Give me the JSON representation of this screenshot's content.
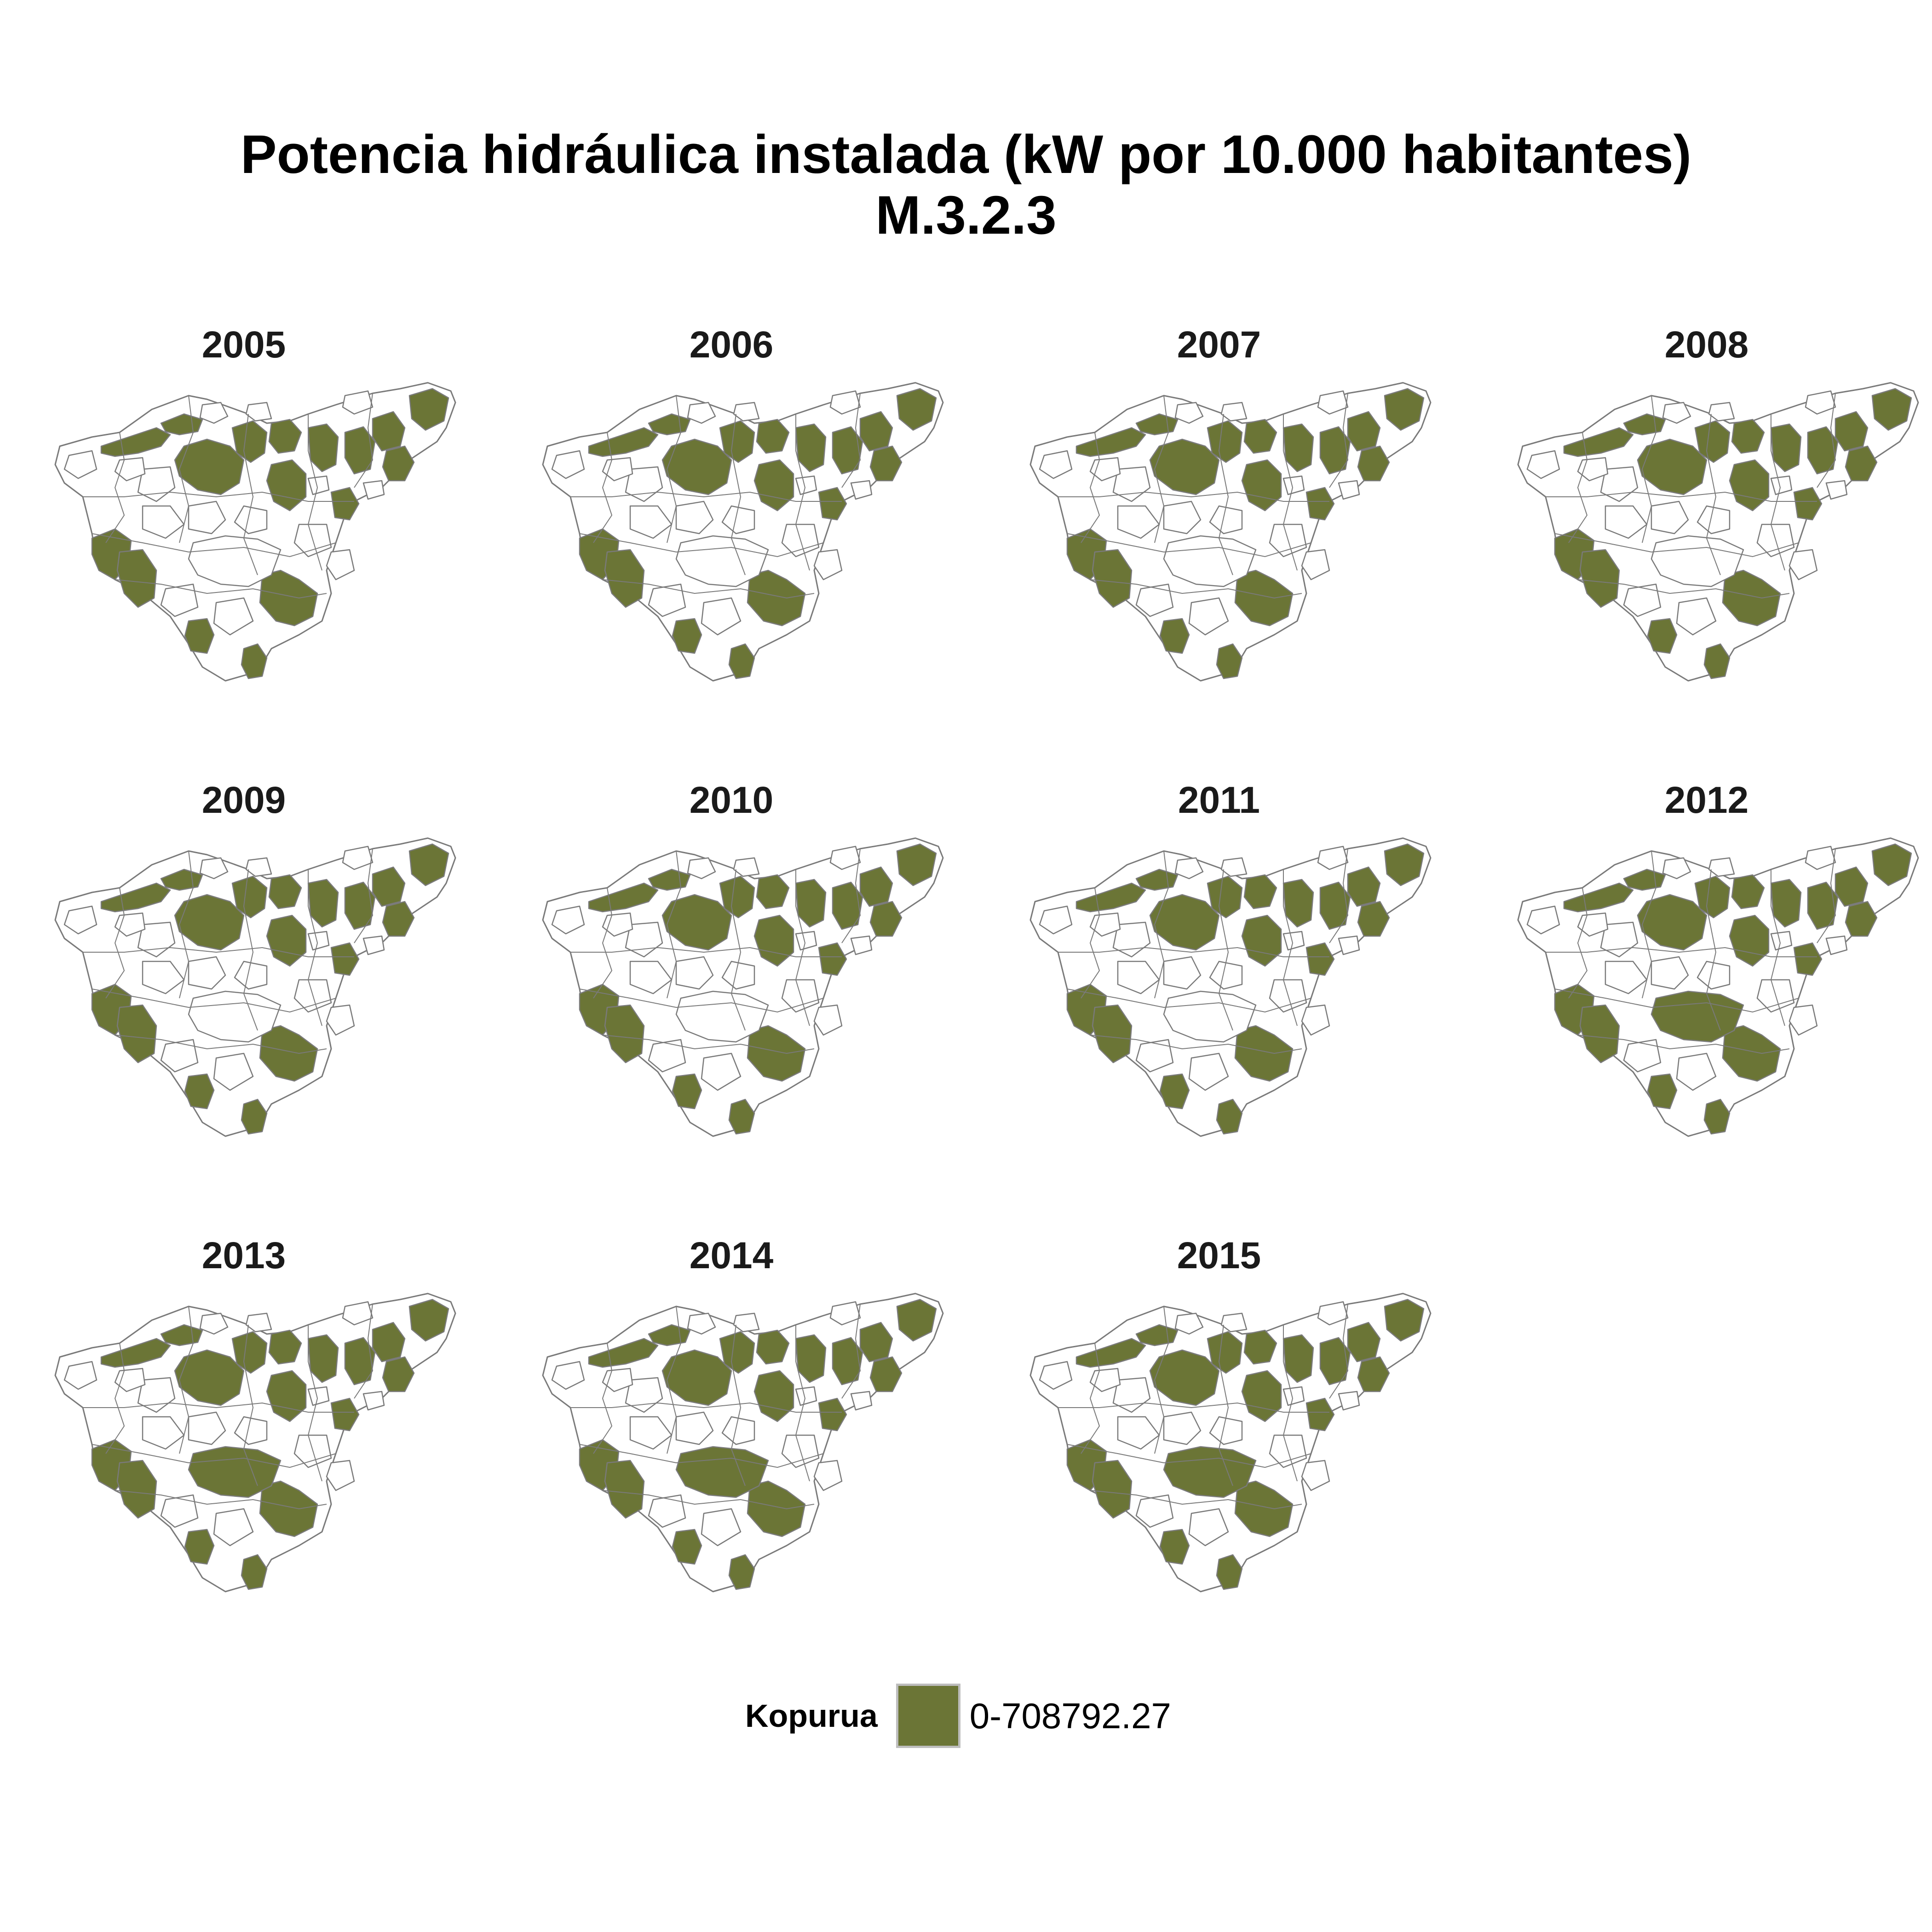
{
  "title": {
    "line1": "Potencia hidráulica instalada (kW por 10.000 habitantes)",
    "line2": "M.3.2.3"
  },
  "colors": {
    "fill": "#6b7536",
    "border": "#7a7a7a",
    "empty": "#ffffff",
    "legend_border": "#bdbdbd"
  },
  "panels": [
    {
      "year": "2005",
      "highlight": [
        "w1",
        "w2",
        "c1",
        "c2",
        "c3",
        "c4",
        "c5",
        "e1",
        "e2",
        "e3",
        "e4",
        "e5",
        "sw1",
        "sw2",
        "s1",
        "s2",
        "s3"
      ]
    },
    {
      "year": "2006",
      "highlight": [
        "w1",
        "w2",
        "c1",
        "c2",
        "c3",
        "c4",
        "c5",
        "e1",
        "e2",
        "e3",
        "e4",
        "e5",
        "sw1",
        "sw2",
        "s1",
        "s2",
        "s3"
      ]
    },
    {
      "year": "2007",
      "highlight": [
        "w1",
        "w2",
        "c1",
        "c2",
        "c3",
        "c4",
        "c5",
        "e1",
        "e2",
        "e3",
        "e4",
        "e5",
        "sw1",
        "sw2",
        "s1",
        "s2",
        "s3"
      ]
    },
    {
      "year": "2008",
      "highlight": [
        "w1",
        "w2",
        "c1",
        "c2",
        "c3",
        "c4",
        "c5",
        "e1",
        "e2",
        "e3",
        "e4",
        "e5",
        "sw1",
        "sw2",
        "s1",
        "s2",
        "s3"
      ]
    },
    {
      "year": "2009",
      "highlight": [
        "w1",
        "w2",
        "c1",
        "c2",
        "c3",
        "c4",
        "c5",
        "e1",
        "e2",
        "e3",
        "e4",
        "e5",
        "sw1",
        "sw2",
        "s1",
        "s2",
        "s3"
      ]
    },
    {
      "year": "2010",
      "highlight": [
        "w1",
        "w2",
        "c1",
        "c2",
        "c3",
        "c4",
        "c5",
        "e1",
        "e2",
        "e3",
        "e4",
        "e5",
        "sw1",
        "sw2",
        "s1",
        "s2",
        "s3"
      ]
    },
    {
      "year": "2011",
      "highlight": [
        "w1",
        "w2",
        "c1",
        "c2",
        "c3",
        "c4",
        "c5",
        "e1",
        "e2",
        "e3",
        "e4",
        "e5",
        "sw1",
        "sw2",
        "s1",
        "s2",
        "s3"
      ]
    },
    {
      "year": "2012",
      "highlight": [
        "w1",
        "w2",
        "c1",
        "c2",
        "c3",
        "c4",
        "c5",
        "e1",
        "e2",
        "e3",
        "e4",
        "e5",
        "sw1",
        "sw2",
        "s1",
        "s2",
        "s3",
        "m1"
      ]
    },
    {
      "year": "2013",
      "highlight": [
        "w1",
        "w2",
        "c1",
        "c2",
        "c3",
        "c4",
        "c5",
        "e1",
        "e2",
        "e3",
        "e4",
        "e5",
        "sw1",
        "sw2",
        "s1",
        "s2",
        "s3",
        "m1"
      ]
    },
    {
      "year": "2014",
      "highlight": [
        "w1",
        "w2",
        "c1",
        "c2",
        "c3",
        "c4",
        "c5",
        "e1",
        "e2",
        "e3",
        "e4",
        "e5",
        "sw1",
        "sw2",
        "s1",
        "s2",
        "s3",
        "m1"
      ]
    },
    {
      "year": "2015",
      "highlight": [
        "w1",
        "w2",
        "c1",
        "c2",
        "c3",
        "c4",
        "c5",
        "e1",
        "e2",
        "e3",
        "e4",
        "e5",
        "sw1",
        "sw2",
        "s1",
        "s2",
        "s3",
        "m1"
      ]
    }
  ],
  "legend": {
    "title": "Kopurua",
    "label": "0-708792.27"
  }
}
